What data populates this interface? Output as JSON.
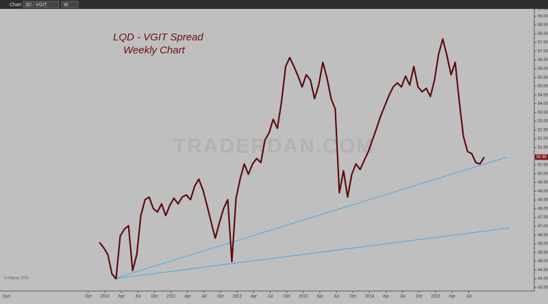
{
  "window_title": "Chart",
  "symbol": "3D - VGIT",
  "interval": "W",
  "copyright": "© eSignal, 2015",
  "dyn_label": "Dyn",
  "chart_data": {
    "type": "line",
    "title": "LQD - VGIT Spread",
    "subtitle": "Weekly Chart",
    "watermark": "TRADERDAN.COM",
    "series": [
      {
        "name": "LQD - VGIT Spread",
        "color": "#5c0a0e",
        "x": [
          2009.92,
          2009.983,
          2010.045,
          2010.108,
          2010.17,
          2010.233,
          2010.295,
          2010.358,
          2010.42,
          2010.483,
          2010.545,
          2010.608,
          2010.67,
          2010.733,
          2010.795,
          2010.858,
          2010.92,
          2010.983,
          2011.045,
          2011.108,
          2011.17,
          2011.233,
          2011.295,
          2011.358,
          2011.42,
          2011.483,
          2011.545,
          2011.608,
          2011.67,
          2011.733,
          2011.795,
          2011.858,
          2011.92,
          2011.983,
          2012.045,
          2012.108,
          2012.17,
          2012.233,
          2012.295,
          2012.358,
          2012.42,
          2012.483,
          2012.545,
          2012.608,
          2012.67,
          2012.733,
          2012.795,
          2012.858,
          2012.92,
          2012.983,
          2013.045,
          2013.108,
          2013.17,
          2013.233,
          2013.295,
          2013.358,
          2013.42,
          2013.483,
          2013.545,
          2013.608,
          2013.67,
          2013.733,
          2013.795,
          2013.858,
          2013.92,
          2013.983,
          2014.045,
          2014.108,
          2014.17,
          2014.233,
          2014.295,
          2014.358,
          2014.42,
          2014.483,
          2014.545,
          2014.608,
          2014.67,
          2014.733,
          2014.795,
          2014.858,
          2014.92,
          2014.983,
          2015.045,
          2015.108,
          2015.17,
          2015.233,
          2015.295,
          2015.358,
          2015.42,
          2015.483,
          2015.545,
          2015.608,
          2015.67,
          2015.733
        ],
        "values": [
          46.08,
          45.77,
          45.38,
          44.28,
          44.0,
          46.44,
          46.83,
          47.03,
          44.47,
          45.38,
          47.61,
          48.52,
          48.67,
          48.01,
          47.81,
          48.28,
          47.61,
          48.2,
          48.6,
          48.28,
          48.67,
          48.79,
          48.52,
          49.3,
          49.69,
          49.07,
          48.2,
          47.22,
          46.32,
          47.22,
          48.01,
          48.52,
          44.98,
          48.6,
          49.69,
          50.56,
          49.97,
          50.56,
          50.87,
          50.64,
          51.93,
          52.33,
          53.11,
          52.6,
          54.09,
          56.13,
          56.64,
          56.13,
          55.58,
          54.96,
          55.66,
          55.35,
          54.29,
          55.07,
          56.37,
          55.47,
          54.29,
          53.7,
          48.91,
          50.17,
          48.67,
          49.97,
          50.56,
          50.24,
          50.76,
          51.27,
          51.93,
          52.6,
          53.31,
          53.9,
          54.48,
          54.96,
          55.19,
          54.96,
          55.58,
          55.07,
          56.13,
          54.96,
          54.68,
          54.88,
          54.41,
          55.35,
          56.84,
          57.7,
          56.76,
          55.66,
          56.37,
          54.09,
          52.13,
          51.27,
          51.15,
          50.64,
          50.56,
          50.95
        ]
      }
    ],
    "last_price": 50.95,
    "trendlines": [
      {
        "color": "#4ea6e0",
        "x": [
          2010.135,
          2016.076
        ],
        "y": [
          44.0,
          50.95
        ]
      },
      {
        "color": "#4ea6e0",
        "x": [
          2010.135,
          2016.13
        ],
        "y": [
          44.0,
          46.91
        ]
      }
    ],
    "xlim": [
      2008.416,
      2016.491
    ],
    "xticks": [
      {
        "value": 2009.75,
        "label": "Oct"
      },
      2010,
      {
        "value": 2010.25,
        "label": "Apr"
      },
      {
        "value": 2010.5,
        "label": "Jul"
      },
      {
        "value": 2010.75,
        "label": "Oct"
      },
      2011,
      {
        "value": 2011.25,
        "label": "Apr"
      },
      {
        "value": 2011.5,
        "label": "Jul"
      },
      {
        "value": 2011.75,
        "label": "Oct"
      },
      2012,
      {
        "value": 2012.25,
        "label": "Apr"
      },
      {
        "value": 2012.5,
        "label": "Jul"
      },
      {
        "value": 2012.75,
        "label": "Oct"
      },
      2013,
      {
        "value": 2013.25,
        "label": "Apr"
      },
      {
        "value": 2013.5,
        "label": "Jul"
      },
      {
        "value": 2013.75,
        "label": "Oct"
      },
      2014,
      {
        "value": 2014.25,
        "label": "Apr"
      },
      {
        "value": 2014.5,
        "label": "Jul"
      },
      {
        "value": 2014.75,
        "label": "Oct"
      },
      2015,
      {
        "value": 2015.25,
        "label": "Apr"
      },
      {
        "value": 2015.5,
        "label": "Jul"
      }
    ],
    "ylim": [
      43.3,
      59.42
    ],
    "yticks": [
      {
        "value": 43.5,
        "label": "43.50"
      },
      {
        "value": 44,
        "label": "44.00"
      },
      {
        "value": 44.5,
        "label": "44.50"
      },
      {
        "value": 45,
        "label": "45.00"
      },
      {
        "value": 45.5,
        "label": "45.50"
      },
      {
        "value": 46,
        "label": "46.00"
      },
      {
        "value": 46.5,
        "label": "46.50"
      },
      {
        "value": 47,
        "label": "47.00"
      },
      {
        "value": 47.5,
        "label": "47.50"
      },
      {
        "value": 48,
        "label": "48.00"
      },
      {
        "value": 48.5,
        "label": "48.50"
      },
      {
        "value": 49,
        "label": "49.00"
      },
      {
        "value": 49.5,
        "label": "49.50"
      },
      {
        "value": 50,
        "label": "50.00"
      },
      {
        "value": 50.5,
        "label": "50.50"
      },
      {
        "value": 51,
        "label": "51.00"
      },
      {
        "value": 51.5,
        "label": "51.50"
      },
      {
        "value": 52,
        "label": "52.00"
      },
      {
        "value": 52.5,
        "label": "52.50"
      },
      {
        "value": 53,
        "label": "53.00"
      },
      {
        "value": 53.5,
        "label": "53.50"
      },
      {
        "value": 54,
        "label": "54.00"
      },
      {
        "value": 54.5,
        "label": "54.50"
      },
      {
        "value": 55,
        "label": "55.00"
      },
      {
        "value": 55.5,
        "label": "55.50"
      },
      {
        "value": 56,
        "label": "56.00"
      },
      {
        "value": 56.5,
        "label": "56.50"
      },
      {
        "value": 57,
        "label": "57.00"
      },
      {
        "value": 57.5,
        "label": "57.50"
      },
      {
        "value": 58,
        "label": "58.00"
      },
      {
        "value": 58.5,
        "label": "58.50"
      },
      {
        "value": 59,
        "label": "59.00"
      },
      {
        "value": 59.42,
        "label": "59.42"
      }
    ],
    "grid": false
  }
}
